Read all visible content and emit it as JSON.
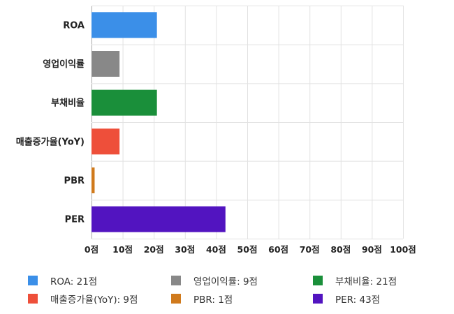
{
  "chart_data": {
    "type": "bar",
    "orientation": "horizontal",
    "categories": [
      "ROA",
      "영업이익률",
      "부채비율",
      "매출증가율(YoY)",
      "PBR",
      "PER"
    ],
    "values": [
      21,
      9,
      21,
      9,
      1,
      43
    ],
    "colors": [
      "#3b8fe8",
      "#888888",
      "#1a8f3a",
      "#ee4f3a",
      "#d07a1c",
      "#5214c0"
    ],
    "xlim": [
      0,
      100
    ],
    "x_ticks": [
      0,
      10,
      20,
      30,
      40,
      50,
      60,
      70,
      80,
      90,
      100
    ],
    "tick_suffix": "점",
    "grid": true,
    "legend_position": "bottom",
    "legend": [
      {
        "label": "ROA: 21점",
        "color": "#3b8fe8"
      },
      {
        "label": "영업이익률: 9점",
        "color": "#888888"
      },
      {
        "label": "부채비율: 21점",
        "color": "#1a8f3a"
      },
      {
        "label": "매출증가율(YoY): 9점",
        "color": "#ee4f3a"
      },
      {
        "label": "PBR: 1점",
        "color": "#d07a1c"
      },
      {
        "label": "PER: 43점",
        "color": "#5214c0"
      }
    ]
  }
}
